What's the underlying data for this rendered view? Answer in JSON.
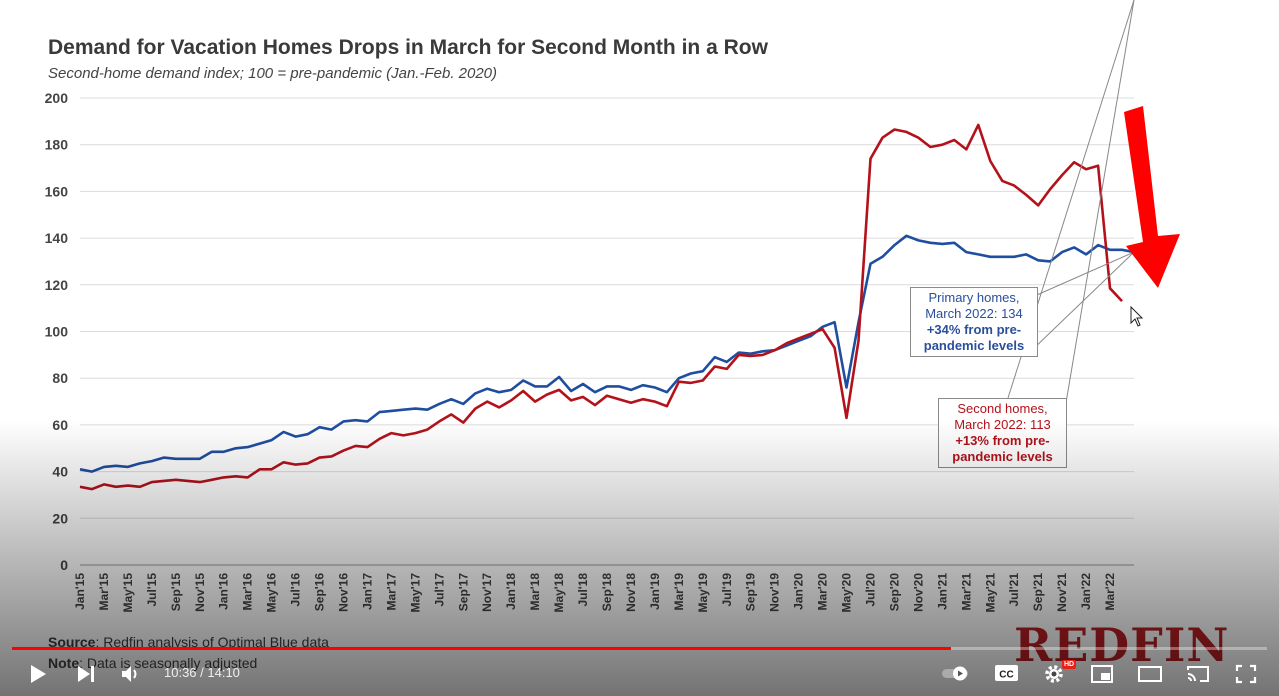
{
  "chart_data": {
    "type": "line",
    "title": "Demand for Vacation Homes Drops in March for Second Month in a Row",
    "subtitle": "Second-home demand index; 100 = pre-pandemic (Jan.-Feb. 2020)",
    "ylim": [
      0,
      200
    ],
    "yticks": [
      0,
      20,
      40,
      60,
      80,
      100,
      120,
      140,
      160,
      180,
      200
    ],
    "x_tick_labels": [
      "Jan'15",
      "Mar'15",
      "May'15",
      "Jul'15",
      "Sep'15",
      "Nov'15",
      "Jan'16",
      "Mar'16",
      "May'16",
      "Jul'16",
      "Sep'16",
      "Nov'16",
      "Jan'17",
      "Mar'17",
      "May'17",
      "Jul'17",
      "Sep'17",
      "Nov'17",
      "Jan'18",
      "Mar'18",
      "May'18",
      "Jul'18",
      "Sep'18",
      "Nov'18",
      "Jan'19",
      "Mar'19",
      "May'19",
      "Jul'19",
      "Sep'19",
      "Nov'19",
      "Jan'20",
      "Mar'20",
      "May'20",
      "Jul'20",
      "Sep'20",
      "Nov'20",
      "Jan'21",
      "Mar'21",
      "May'21",
      "Jul'21",
      "Sep'21",
      "Nov'21",
      "Jan'22",
      "Mar'22"
    ],
    "x_range": [
      "Jan 2015",
      "Mar 2022"
    ],
    "grid": true,
    "series": [
      {
        "color": "#1f4ea1",
        "values": [
          41,
          40,
          42,
          42.5,
          42,
          43.5,
          44.5,
          46,
          45.5,
          45.5,
          45.5,
          48.5,
          48.5,
          50,
          50.5,
          52,
          53.5,
          57,
          55,
          56,
          59,
          58,
          61.5,
          62,
          61.5,
          65.5,
          66,
          66.5,
          67,
          66.5,
          69,
          71,
          69,
          73.5,
          75.5,
          74,
          75,
          79,
          76.5,
          76.5,
          80.5,
          74.5,
          77.5,
          74,
          76.5,
          76.5,
          75,
          77,
          76,
          74,
          80,
          82,
          83,
          89,
          87,
          91,
          90.5,
          91.5,
          92,
          94,
          96,
          98,
          102,
          104,
          76,
          104,
          129,
          132,
          137,
          141,
          139,
          138,
          137.5,
          138,
          134,
          133,
          132,
          132,
          132,
          133,
          130.5,
          130,
          134,
          136,
          133,
          137,
          135,
          135,
          134
        ]
      },
      {
        "color": "#b4121b",
        "values": [
          33.5,
          32.5,
          34.5,
          33.5,
          34,
          33.5,
          35.5,
          36,
          36.5,
          36,
          35.5,
          36.5,
          37.5,
          38,
          37.5,
          41,
          41,
          44,
          43,
          43.5,
          46,
          46.5,
          49,
          51,
          50.5,
          54,
          56.5,
          55.5,
          56.5,
          58,
          61.5,
          64.5,
          61,
          67,
          70,
          67.5,
          70.5,
          74.5,
          70,
          73,
          75,
          70.5,
          72,
          68.5,
          72.5,
          71,
          69.5,
          71,
          70,
          68,
          78.5,
          78,
          79,
          85,
          84,
          90,
          89.5,
          90,
          92,
          95,
          97,
          99,
          101,
          93,
          63,
          96,
          174,
          183,
          186.5,
          185.5,
          183,
          179,
          180,
          182,
          178,
          188.5,
          173,
          164.5,
          162.5,
          158.5,
          154,
          161,
          167,
          172.5,
          169.5,
          171,
          118.5,
          113
        ]
      }
    ],
    "callouts": {
      "primary": {
        "line1": "Primary homes,",
        "line2": "March 2022: 134",
        "bold1": "+34% from pre-",
        "bold2": "pandemic levels"
      },
      "second": {
        "line1": "Second homes,",
        "line2": "March 2022: 113",
        "bold1": "+13% from pre-",
        "bold2": "pandemic levels"
      }
    },
    "annotation_arrow_color": "#ff0000"
  },
  "footnotes": {
    "source_label": "Source",
    "source_text": ": Redfin analysis of Optimal Blue data",
    "note_label": "Note",
    "note_text": ": Data is seasonally adjusted"
  },
  "brand": {
    "logo_text": "REDFIN",
    "logo_color": "#b81f24"
  },
  "player": {
    "time_text": "10:36 / 14:10",
    "progress_fraction": 0.748,
    "hd_badge": "HD",
    "cc_label": "CC",
    "icons": [
      "play-icon",
      "next-icon",
      "volume-icon",
      "autoplay-toggle-icon",
      "captions-icon",
      "settings-icon",
      "miniplayer-icon",
      "theater-icon",
      "cast-icon",
      "fullscreen-icon"
    ]
  }
}
